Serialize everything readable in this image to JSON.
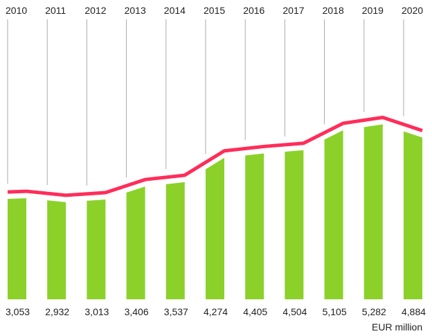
{
  "chart_data": {
    "type": "bar",
    "categories": [
      "2010",
      "2011",
      "2012",
      "2013",
      "2014",
      "2015",
      "2016",
      "2017",
      "2018",
      "2019",
      "2020"
    ],
    "values": [
      3053,
      2932,
      3013,
      3406,
      3537,
      4274,
      4405,
      4504,
      5105,
      5282,
      4884
    ],
    "value_labels": [
      "3,053",
      "2,932",
      "3,013",
      "3,406",
      "3,537",
      "4,274",
      "4,405",
      "4,504",
      "5,105",
      "5,282",
      "4,884"
    ],
    "unit": "EUR million",
    "colors": {
      "bar": "#8bd12a",
      "line": "#ff2d5a",
      "grid": "#aaaaaa"
    }
  }
}
